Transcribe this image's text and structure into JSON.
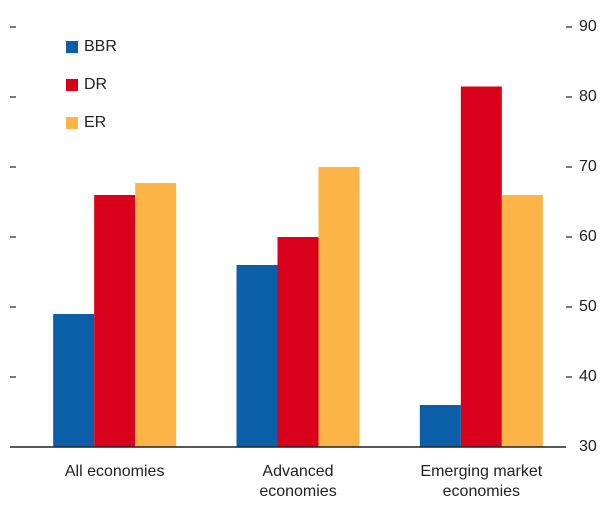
{
  "chart_data": {
    "type": "bar",
    "categories": [
      "All economies",
      "Advanced economies",
      "Emerging market economies"
    ],
    "series": [
      {
        "name": "BBR",
        "color": "#0b5ea8",
        "values": [
          49,
          56,
          36
        ]
      },
      {
        "name": "DR",
        "color": "#d9001b",
        "values": [
          66,
          60,
          81.5
        ]
      },
      {
        "name": "ER",
        "color": "#fdb446",
        "values": [
          67.7,
          70,
          66
        ]
      }
    ],
    "ylim": [
      30,
      90
    ],
    "yticks": [
      30,
      40,
      50,
      60,
      70,
      80,
      90
    ],
    "grid": false,
    "legend": "top-left"
  }
}
